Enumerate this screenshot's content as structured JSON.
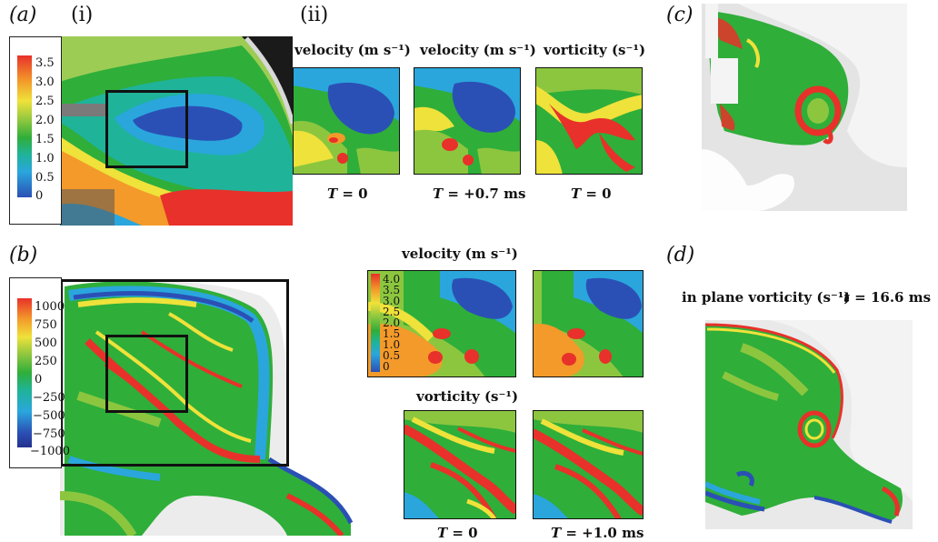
{
  "panels": {
    "a": "(a)",
    "a_i": "(i)",
    "a_ii": "(ii)",
    "b": "(b)",
    "c": "(c)",
    "d": "(d)"
  },
  "legend_a": {
    "ticks": [
      "3.5",
      "3.0",
      "2.5",
      "2.0",
      "1.5",
      "1.0",
      "0.5",
      "0"
    ]
  },
  "legend_b": {
    "ticks": [
      "1000",
      "750",
      "500",
      "250",
      "0",
      "−250",
      "−500",
      "−750",
      "−1000"
    ]
  },
  "legend_b2": {
    "ticks": [
      "4.0",
      "3.5",
      "3.0",
      "2.5",
      "2.0",
      "1.5",
      "1.0",
      "0.5",
      "0"
    ]
  },
  "a_ii": {
    "cap1": "velocity (m s⁻¹)",
    "cap2": "velocity (m s⁻¹)",
    "cap3": "vorticity (s⁻¹)",
    "t1_var": "T",
    "t1_val": " = 0",
    "t2_var": "T",
    "t2_val": " = +0.7 ms",
    "t3_var": "T",
    "t3_val": " = 0"
  },
  "b_right": {
    "velocity_cap": "velocity (m s⁻¹)",
    "vorticity_cap": "vorticity (s⁻¹)",
    "t1_var": "T",
    "t1_val": " = 0",
    "t2_var": "T",
    "t2_val": " = +1.0 ms"
  },
  "d": {
    "caption": "in plane vorticity (s⁻¹)",
    "time_var": "t",
    "time_val": " = 16.6 ms"
  },
  "colors": {
    "red": "#e8312a",
    "orange": "#f39a2a",
    "yellow": "#efe23a",
    "lightgreen": "#8cc63f",
    "green": "#2fae3a",
    "teal": "#1fb39a",
    "cyan": "#2aa6dd",
    "blue": "#2b50b5",
    "darkblue": "#23318f"
  }
}
